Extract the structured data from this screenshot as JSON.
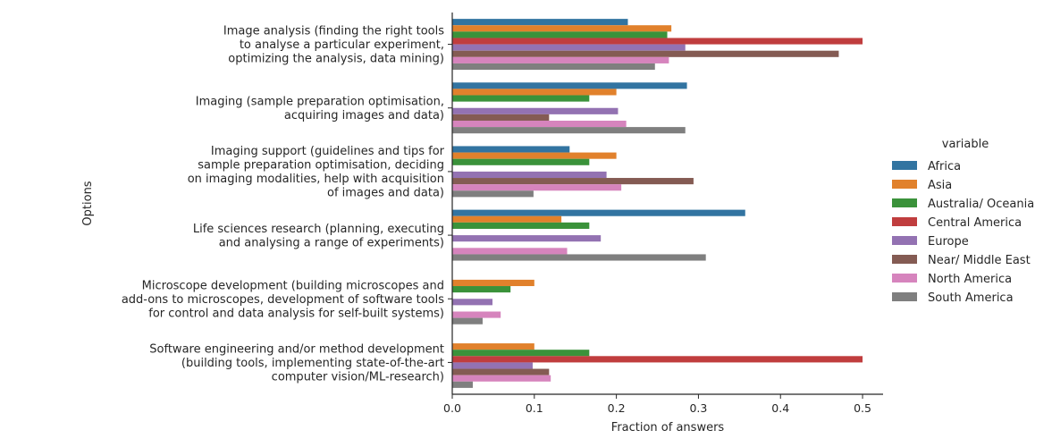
{
  "chart_data": {
    "type": "bar",
    "orientation": "horizontal",
    "xlabel": "Fraction of answers",
    "ylabel": "Options",
    "xlim": [
      0,
      0.525
    ],
    "xticks": [
      "0.0",
      "0.1",
      "0.2",
      "0.3",
      "0.4",
      "0.5"
    ],
    "categories": [
      [
        "Image analysis (finding the right tools",
        "to analyse a particular experiment,",
        "optimizing the analysis, data mining)"
      ],
      [
        "Imaging (sample preparation optimisation,",
        "acquiring images and data)"
      ],
      [
        "Imaging support (guidelines and tips for",
        "sample preparation optimisation, deciding",
        "on imaging modalities, help with acquisition",
        "of images and data)"
      ],
      [
        "Life sciences research (planning, executing",
        "and analysing a range of experiments)"
      ],
      [
        "Microscope development (building microscopes and",
        "add-ons to microscopes, development of software tools",
        "for control and data analysis for self-built systems)"
      ],
      [
        "Software engineering and/or method development",
        "(building tools, implementing state-of-the-art",
        "computer vision/ML-research)"
      ]
    ],
    "legend_title": "variable",
    "legend_position": "right",
    "series": [
      {
        "name": "Africa",
        "color": "#3274a1",
        "values": [
          0.214,
          0.286,
          0.143,
          0.357,
          0,
          0
        ]
      },
      {
        "name": "Asia",
        "color": "#e1812c",
        "values": [
          0.267,
          0.2,
          0.2,
          0.133,
          0.1,
          0.1
        ]
      },
      {
        "name": "Australia/ Oceania",
        "color": "#3a923a",
        "values": [
          0.262,
          0.167,
          0.167,
          0.167,
          0.071,
          0.167
        ]
      },
      {
        "name": "Central America",
        "color": "#c03d3e",
        "values": [
          0.5,
          0,
          0,
          0,
          0,
          0.5
        ]
      },
      {
        "name": "Europe",
        "color": "#9372b2",
        "values": [
          0.284,
          0.202,
          0.188,
          0.181,
          0.049,
          0.098
        ]
      },
      {
        "name": "Near/ Middle East",
        "color": "#845b53",
        "values": [
          0.471,
          0.118,
          0.294,
          0,
          0,
          0.118
        ]
      },
      {
        "name": "North America",
        "color": "#d684bd",
        "values": [
          0.264,
          0.212,
          0.206,
          0.14,
          0.059,
          0.12
        ]
      },
      {
        "name": "South America",
        "color": "#7f7f7f",
        "values": [
          0.247,
          0.284,
          0.099,
          0.309,
          0.037,
          0.025
        ]
      }
    ]
  }
}
